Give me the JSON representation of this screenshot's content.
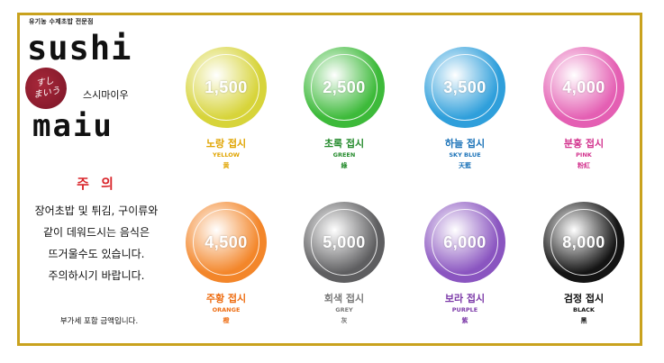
{
  "brand": {
    "tagline": "유기농 수제초밥 전문점",
    "logo_top": "sushi",
    "logo_bottom": "maiu",
    "logo_seal": "すし\nまいう",
    "logo_kana": "스시마이우"
  },
  "caution": {
    "title": "주 의",
    "lines": [
      "장어초밥 및 튀김, 구이류와",
      "같이 데워드시는 음식은",
      "뜨거울수도 있습니다.",
      "주의하시기 바랍니다."
    ]
  },
  "vat_note": "부가세 포함 금액입니다.",
  "plates": [
    {
      "price": "1,500",
      "ko": "노랑 접시",
      "en": "YELLOW",
      "cn": "黄",
      "color": "#d7d43a",
      "text_color": "#e0a400"
    },
    {
      "price": "2,500",
      "ko": "초록 접시",
      "en": "GREEN",
      "cn": "綠",
      "color": "#3dba3a",
      "text_color": "#238a2b"
    },
    {
      "price": "3,500",
      "ko": "하늘 접시",
      "en": "SKY BLUE",
      "cn": "天藍",
      "color": "#2f9fdb",
      "text_color": "#1a72b8"
    },
    {
      "price": "4,000",
      "ko": "분홍 접시",
      "en": "PINK",
      "cn": "粉紅",
      "color": "#e45fb3",
      "text_color": "#d3358f"
    },
    {
      "price": "4,500",
      "ko": "주황 접시",
      "en": "ORANGE",
      "cn": "橙",
      "color": "#f3862a",
      "text_color": "#ee6d12"
    },
    {
      "price": "5,000",
      "ko": "회색 접시",
      "en": "GREY",
      "cn": "灰",
      "color": "#5e5e60",
      "text_color": "#7a7a7a"
    },
    {
      "price": "6,000",
      "ko": "보라 접시",
      "en": "PURPLE",
      "cn": "紫",
      "color": "#8a55c0",
      "text_color": "#7c3aa8"
    },
    {
      "price": "8,000",
      "ko": "검정 접시",
      "en": "BLACK",
      "cn": "黑",
      "color": "#141414",
      "text_color": "#111111"
    }
  ],
  "colors": {
    "frame": "#c9a21e",
    "caution": "#d9262b",
    "seal": "#8c1c2e"
  }
}
